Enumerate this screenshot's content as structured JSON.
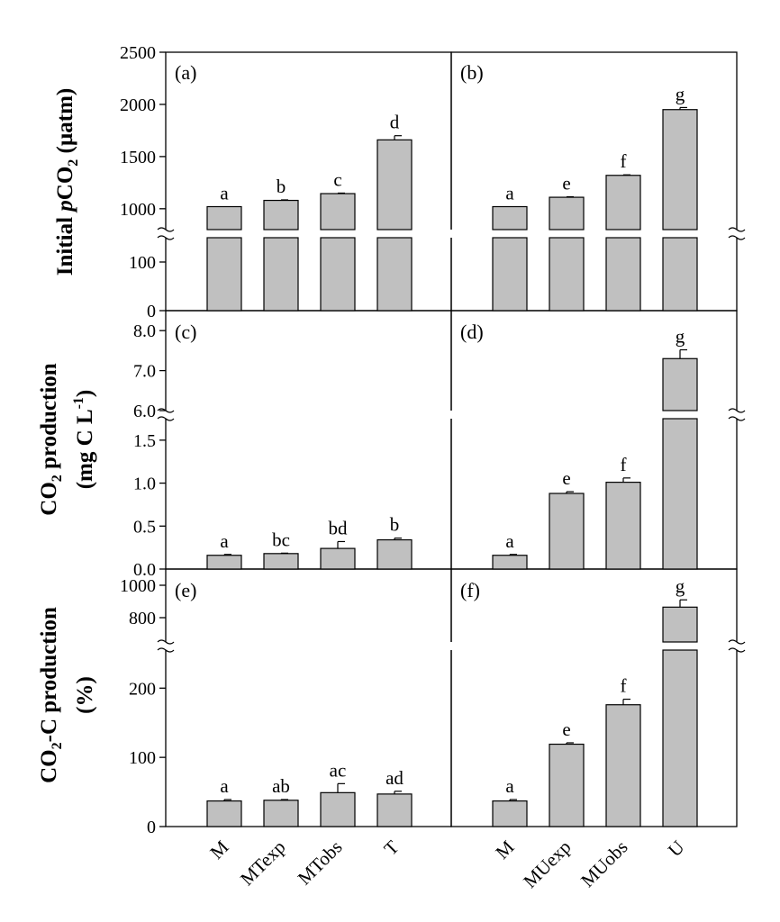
{
  "figure": {
    "y_titles": {
      "row1": "Initial pCO2 (µatm)",
      "row2": "CO2 production (mg C L-1)",
      "row3": "CO2-C production (%)"
    },
    "x_categories_left": [
      "M",
      "MTexp",
      "MTobs",
      "T"
    ],
    "x_categories_right": [
      "M",
      "MUexp",
      "MUobs",
      "U"
    ]
  },
  "chart_data": [
    {
      "type": "bar",
      "panel": "(a)",
      "categories": [
        "M",
        "MTexp",
        "MTobs",
        "T"
      ],
      "values": [
        1020,
        1080,
        1145,
        1660
      ],
      "errors": [
        0,
        5,
        5,
        40
      ],
      "letters": [
        "a",
        "b",
        "c",
        "d"
      ],
      "ylabel": "Initial pCO2 (µatm)",
      "y_broken": true,
      "lower_range": [
        0,
        150
      ],
      "upper_range": [
        800,
        2500
      ],
      "lower_ticks": [
        "0",
        "100"
      ],
      "upper_ticks": [
        "1000",
        "1500",
        "2000",
        "2500"
      ]
    },
    {
      "type": "bar",
      "panel": "(b)",
      "categories": [
        "M",
        "MUexp",
        "MUobs",
        "U"
      ],
      "values": [
        1020,
        1110,
        1320,
        1950
      ],
      "errors": [
        0,
        5,
        5,
        20
      ],
      "letters": [
        "a",
        "e",
        "f",
        "g"
      ],
      "y_broken": true,
      "lower_range": [
        0,
        150
      ],
      "upper_range": [
        800,
        2500
      ]
    },
    {
      "type": "bar",
      "panel": "(c)",
      "categories": [
        "M",
        "MTexp",
        "MTobs",
        "T"
      ],
      "values": [
        0.16,
        0.18,
        0.24,
        0.34
      ],
      "errors": [
        0.01,
        0.005,
        0.08,
        0.02
      ],
      "letters": [
        "a",
        "bc",
        "bd",
        "b"
      ],
      "ylabel": "CO2 production (mg C L-1)",
      "y_broken": true,
      "lower_range": [
        0,
        1.75
      ],
      "upper_range": [
        6.0,
        8.5
      ],
      "lower_ticks": [
        "0.0",
        "0.5",
        "1.0",
        "1.5"
      ],
      "upper_ticks": [
        "6.0",
        "7.0",
        "8.0"
      ]
    },
    {
      "type": "bar",
      "panel": "(d)",
      "categories": [
        "M",
        "MUexp",
        "MUobs",
        "U"
      ],
      "values": [
        0.16,
        0.88,
        1.01,
        7.3
      ],
      "errors": [
        0.01,
        0.02,
        0.05,
        0.22
      ],
      "letters": [
        "a",
        "e",
        "f",
        "g"
      ],
      "y_broken": true,
      "lower_range": [
        0,
        1.75
      ],
      "upper_range": [
        6.0,
        8.5
      ]
    },
    {
      "type": "bar",
      "panel": "(e)",
      "categories": [
        "M",
        "MTexp",
        "MTobs",
        "T"
      ],
      "values": [
        37,
        38,
        49,
        47
      ],
      "errors": [
        2,
        1,
        13,
        4
      ],
      "letters": [
        "a",
        "ab",
        "ac",
        "ad"
      ],
      "ylabel": "CO2-C production (%)",
      "y_broken": true,
      "lower_range": [
        0,
        255
      ],
      "upper_range": [
        650,
        1100
      ],
      "lower_ticks": [
        "0",
        "100",
        "200"
      ],
      "upper_ticks": [
        "800",
        "1000"
      ]
    },
    {
      "type": "bar",
      "panel": "(f)",
      "categories": [
        "M",
        "MUexp",
        "MUobs",
        "U"
      ],
      "values": [
        37,
        119,
        176,
        865
      ],
      "errors": [
        2,
        2,
        8,
        45
      ],
      "letters": [
        "a",
        "e",
        "f",
        "g"
      ],
      "y_broken": true,
      "lower_range": [
        0,
        255
      ],
      "upper_range": [
        650,
        1100
      ]
    }
  ]
}
